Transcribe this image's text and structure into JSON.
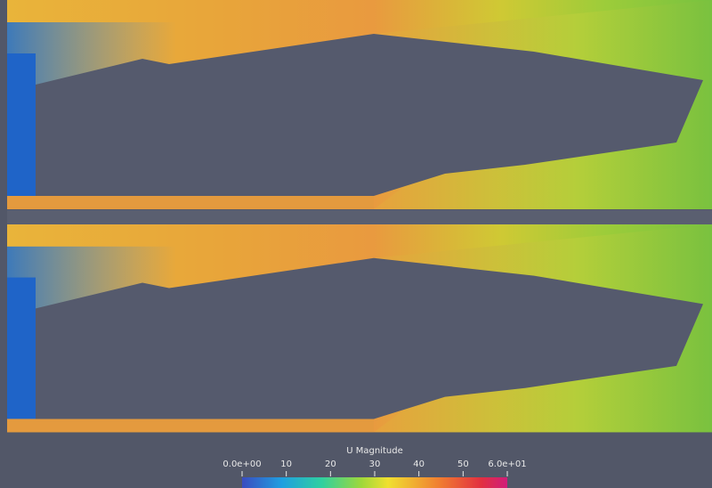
{
  "colorbar": {
    "title": "U Magnitude",
    "range": [
      0,
      60
    ],
    "ticks": [
      {
        "value": 0,
        "label": "0.0e+00"
      },
      10,
      20,
      30,
      40,
      50,
      {
        "value": 60,
        "label": "6.0e+01"
      }
    ]
  }
}
